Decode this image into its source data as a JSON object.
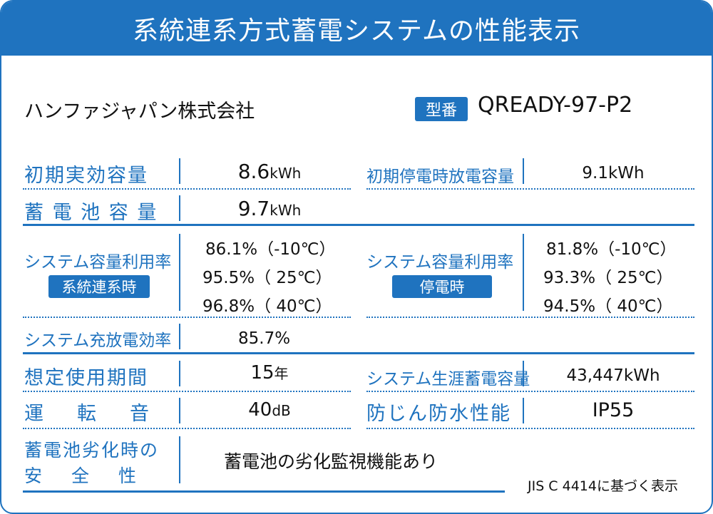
{
  "header": {
    "title": "系統連系方式蓄電システムの性能表示"
  },
  "company": "ハンファジャパン株式会社",
  "model": {
    "badge": "型番",
    "value": "QREADY-97-P2"
  },
  "initial_capacity": {
    "label": "初期実効容量",
    "value": "8.6",
    "unit": "kWh"
  },
  "blackout_discharge": {
    "label": "初期停電時放電容量",
    "value": "9.1kWh"
  },
  "battery_capacity": {
    "label": "蓄 電 池 容 量",
    "value": "9.7",
    "unit": "kWh"
  },
  "utilization_grid": {
    "label": "システム容量利用率",
    "tag": "系統連系時",
    "values": [
      "86.1%（-10℃）",
      "95.5%（ 25℃）",
      "96.8%（ 40℃）"
    ]
  },
  "utilization_blackout": {
    "label": "システム容量利用率",
    "tag": "停電時",
    "values": [
      "81.8%（-10℃）",
      "93.3%（ 25℃）",
      "94.5%（ 40℃）"
    ]
  },
  "charge_efficiency": {
    "label": "システム充放電効率",
    "value": "85.7%"
  },
  "expected_life": {
    "label": "想定使用期間",
    "value": "15",
    "unit": "年"
  },
  "lifetime_capacity": {
    "label": "システム生涯蓄電容量",
    "value": "43,447kWh"
  },
  "noise": {
    "label": "運　転　音",
    "value": "40",
    "unit": "dB"
  },
  "waterproof": {
    "label": "防じん防水性能",
    "value": "IP55"
  },
  "safety": {
    "label_line1": "蓄電池劣化時の",
    "label_line2": "安　全　性",
    "value": "蓄電池の劣化監視機能あり"
  },
  "footnote": "JIS C 4414に基づく表示"
}
